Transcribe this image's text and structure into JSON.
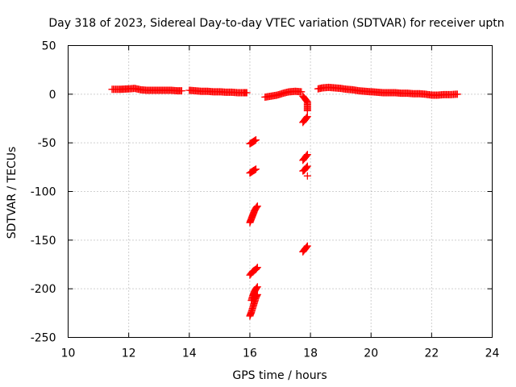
{
  "chart_data": {
    "type": "scatter",
    "title": "Day 318 of 2023, Sidereal Day-to-day VTEC variation (SDTVAR) for receiver uptn",
    "xlabel": "GPS time / hours",
    "ylabel": "SDTVAR / TECUs",
    "xlim": [
      10,
      24
    ],
    "ylim": [
      -250,
      50
    ],
    "xticks": [
      10,
      12,
      14,
      16,
      18,
      20,
      22,
      24
    ],
    "yticks": [
      50,
      0,
      -50,
      -100,
      -150,
      -200,
      -250
    ],
    "grid": true,
    "marker": "+",
    "colors": {
      "series": "#ff0000",
      "grid": "#a0a0a0",
      "frame": "#000000"
    },
    "series": [
      {
        "name": "SDTVAR",
        "segments": [
          {
            "x": [
              11.45,
              11.7,
              12.0,
              12.2,
              12.4,
              12.6,
              12.8,
              13.0,
              13.2,
              13.4,
              13.6,
              13.75
            ],
            "y": [
              5,
              5,
              5.5,
              6,
              4.5,
              4,
              4,
              4,
              4,
              4,
              3.5,
              3.5
            ]
          },
          {
            "x": [
              14.0,
              14.2,
              14.4,
              14.6,
              14.8,
              15.0,
              15.2,
              15.4,
              15.6,
              15.8,
              15.9
            ],
            "y": [
              4,
              3.5,
              3,
              3,
              2.5,
              2.5,
              2,
              2,
              1.5,
              1.5,
              1.5
            ]
          },
          {
            "x": [
              16.0,
              16.05,
              16.1,
              16.15,
              16.2
            ],
            "y": [
              -51,
              -50,
              -49,
              -48,
              -47
            ]
          },
          {
            "x": [
              16.0,
              16.05,
              16.1,
              16.15,
              16.2
            ],
            "y": [
              -81,
              -80,
              -79,
              -78,
              -77
            ]
          },
          {
            "x": [
              16.0,
              16.05,
              16.1,
              16.15,
              16.2,
              16.25
            ],
            "y": [
              -132,
              -128,
              -124,
              -120,
              -117,
              -115
            ]
          },
          {
            "x": [
              16.0,
              16.05,
              16.1,
              16.15,
              16.2,
              16.25
            ],
            "y": [
              -186,
              -184,
              -182,
              -181,
              -180,
              -178
            ]
          },
          {
            "x": [
              16.0,
              16.05,
              16.1,
              16.15,
              16.2,
              16.25
            ],
            "y": [
              -228,
              -224,
              -219,
              -214,
              -209,
              -206
            ]
          },
          {
            "x": [
              16.05,
              16.1,
              16.15,
              16.2,
              16.25
            ],
            "y": [
              -212,
              -207,
              -203,
              -200,
              -198
            ]
          },
          {
            "x": [
              16.5,
              16.7,
              16.9,
              17.1,
              17.3,
              17.5,
              17.7
            ],
            "y": [
              -3,
              -2,
              -1,
              1,
              2.5,
              3,
              2.5
            ]
          },
          {
            "x": [
              17.75,
              17.8,
              17.85,
              17.9,
              17.9
            ],
            "y": [
              -2,
              -4,
              -6,
              -8,
              -17
            ]
          },
          {
            "x": [
              17.75,
              17.8,
              17.85,
              17.9
            ],
            "y": [
              -29,
              -27,
              -25,
              -23
            ]
          },
          {
            "x": [
              17.75,
              17.8,
              17.85,
              17.9
            ],
            "y": [
              -68,
              -66,
              -64,
              -62
            ]
          },
          {
            "x": [
              17.75,
              17.8,
              17.85,
              17.9,
              17.9
            ],
            "y": [
              -79,
              -78,
              -76,
              -74,
              -84
            ]
          },
          {
            "x": [
              17.75,
              17.8,
              17.85,
              17.9
            ],
            "y": [
              -162,
              -160,
              -158,
              -156
            ]
          },
          {
            "x": [
              18.25,
              18.4,
              18.6,
              18.8,
              19.0,
              19.2,
              19.4,
              19.6,
              19.8,
              20.0,
              20.2,
              20.4,
              20.6,
              20.8,
              21.0,
              21.2,
              21.4,
              21.6,
              21.8,
              22.0,
              22.2,
              22.4,
              22.6,
              22.85
            ],
            "y": [
              5.5,
              6.5,
              7,
              6.5,
              6,
              5,
              4.5,
              3.5,
              3,
              2.5,
              2,
              1.5,
              1.5,
              1.5,
              1,
              1,
              0.5,
              0.5,
              0,
              -1,
              -1,
              -0.5,
              -0.5,
              0
            ]
          }
        ]
      }
    ]
  }
}
